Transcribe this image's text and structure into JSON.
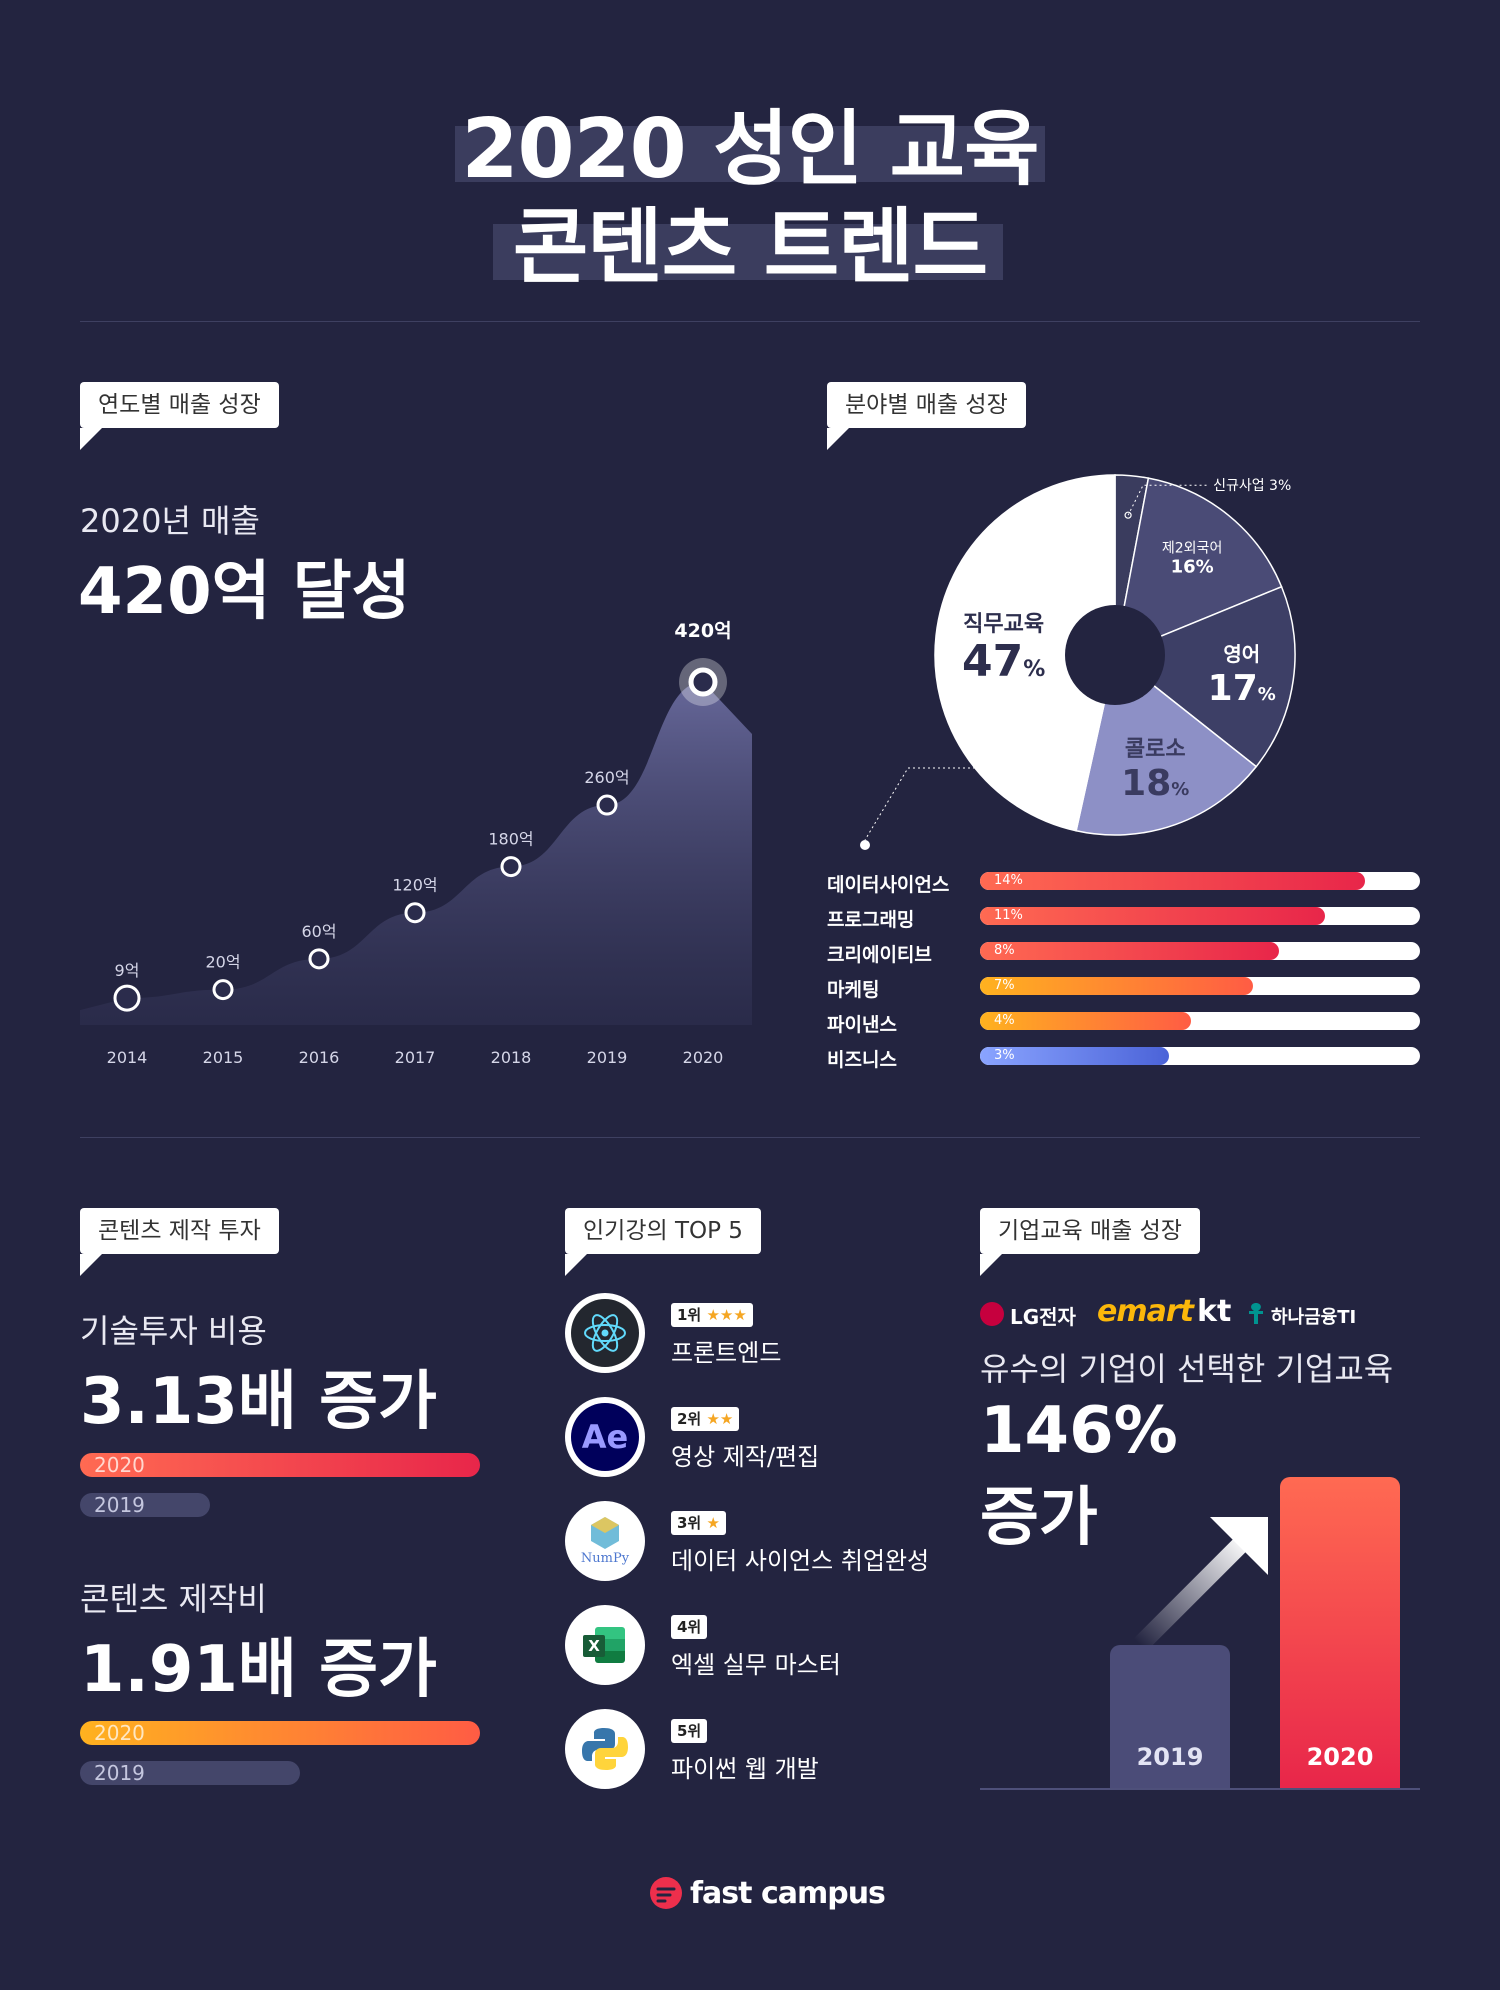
{
  "title": {
    "line1": "2020 성인 교육",
    "line2": "콘텐츠 트렌드"
  },
  "yearly": {
    "tag": "연도별 매출 성장",
    "subtitle": "2020년 매출",
    "headline": "420억 달성"
  },
  "field": {
    "tag": "분야별 매출 성장"
  },
  "investment": {
    "tag": "콘텐츠 제작 투자",
    "tech_sub": "기술투자 비용",
    "tech_big": "3.13배 증가",
    "tech_bar_2020": "2020",
    "tech_bar_2019": "2019",
    "content_sub": "콘텐츠 제작비",
    "content_big": "1.91배 증가",
    "content_bar_2020": "2020",
    "content_bar_2019": "2019"
  },
  "top5": {
    "tag": "인기강의 TOP 5",
    "items": [
      {
        "rank": "1위",
        "stars": "★★★",
        "name": "프론트엔드",
        "icon": "react-icon"
      },
      {
        "rank": "2위",
        "stars": "★★",
        "name": "영상 제작/편집",
        "icon": "after-effects-icon"
      },
      {
        "rank": "3위",
        "stars": "★",
        "name": "데이터 사이언스 취업완성",
        "icon": "numpy-icon"
      },
      {
        "rank": "4위",
        "stars": "",
        "name": "엑셀 실무 마스터",
        "icon": "excel-icon"
      },
      {
        "rank": "5위",
        "stars": "",
        "name": "파이썬 웹 개발",
        "icon": "python-icon"
      }
    ],
    "ae_text": "Ae",
    "numpy_text": "NumPy",
    "excel_text": "X"
  },
  "corporate": {
    "tag": "기업교육 매출 성장",
    "logos": {
      "lg": "LG전자",
      "emart": "emart",
      "kt": "kt",
      "hana": "하나금융TI"
    },
    "sub": "유수의 기업이 선택한 기업교육",
    "big1": "146%",
    "big2": "증가",
    "bar_2019": "2019",
    "bar_2020": "2020"
  },
  "footer": {
    "brand": "fast campus"
  },
  "colors": {
    "background": "#232440",
    "red_gradient_start": "#ff6a52",
    "red_gradient_end": "#e8264a",
    "orange_gradient_start": "#ffb21f",
    "orange_gradient_end": "#ff5c44",
    "blue_gradient_start": "#8aa4ff",
    "blue_gradient_end": "#4b63d8"
  },
  "chart_data": [
    {
      "type": "area",
      "x": [
        "2014",
        "2015",
        "2016",
        "2017",
        "2018",
        "2019",
        "2020"
      ],
      "values": [
        9,
        20,
        60,
        120,
        180,
        260,
        420
      ],
      "data_labels": [
        "9억",
        "20억",
        "60억",
        "120억",
        "180억",
        "260억",
        "420억"
      ],
      "highlight": "2020"
    },
    {
      "type": "pie",
      "donut": true,
      "slices": [
        {
          "label": "신규사업",
          "value": 3,
          "value_text": "신규사업 3%",
          "color": "#3a3c5e"
        },
        {
          "label": "제2외국어",
          "value": 16,
          "value_text": "16%",
          "color": "#4a4b76"
        },
        {
          "label": "영어",
          "value": 17,
          "value_text": "17",
          "color": "#3d3f66"
        },
        {
          "label": "콜로소",
          "value": 18,
          "value_text": "18",
          "color": "#8d90c6"
        },
        {
          "label": "직무교육",
          "value": 47,
          "value_text": "47",
          "color": "#ffffff"
        }
      ],
      "pct_sign": "%"
    },
    {
      "type": "bar",
      "orientation": "horizontal",
      "categories": [
        "데이터사이언스",
        "프로그래밍",
        "크리에이티브",
        "마케팅",
        "파이낸스",
        "비즈니스"
      ],
      "values": [
        14,
        11,
        8,
        7,
        4,
        3
      ],
      "value_labels": [
        "14%",
        "11%",
        "8%",
        "7%",
        "4%",
        "3%"
      ],
      "fill_fraction": [
        0.875,
        0.785,
        0.68,
        0.62,
        0.48,
        0.43
      ],
      "fill_colors": [
        "red",
        "red",
        "red",
        "orange",
        "orange",
        "blue"
      ]
    }
  ]
}
